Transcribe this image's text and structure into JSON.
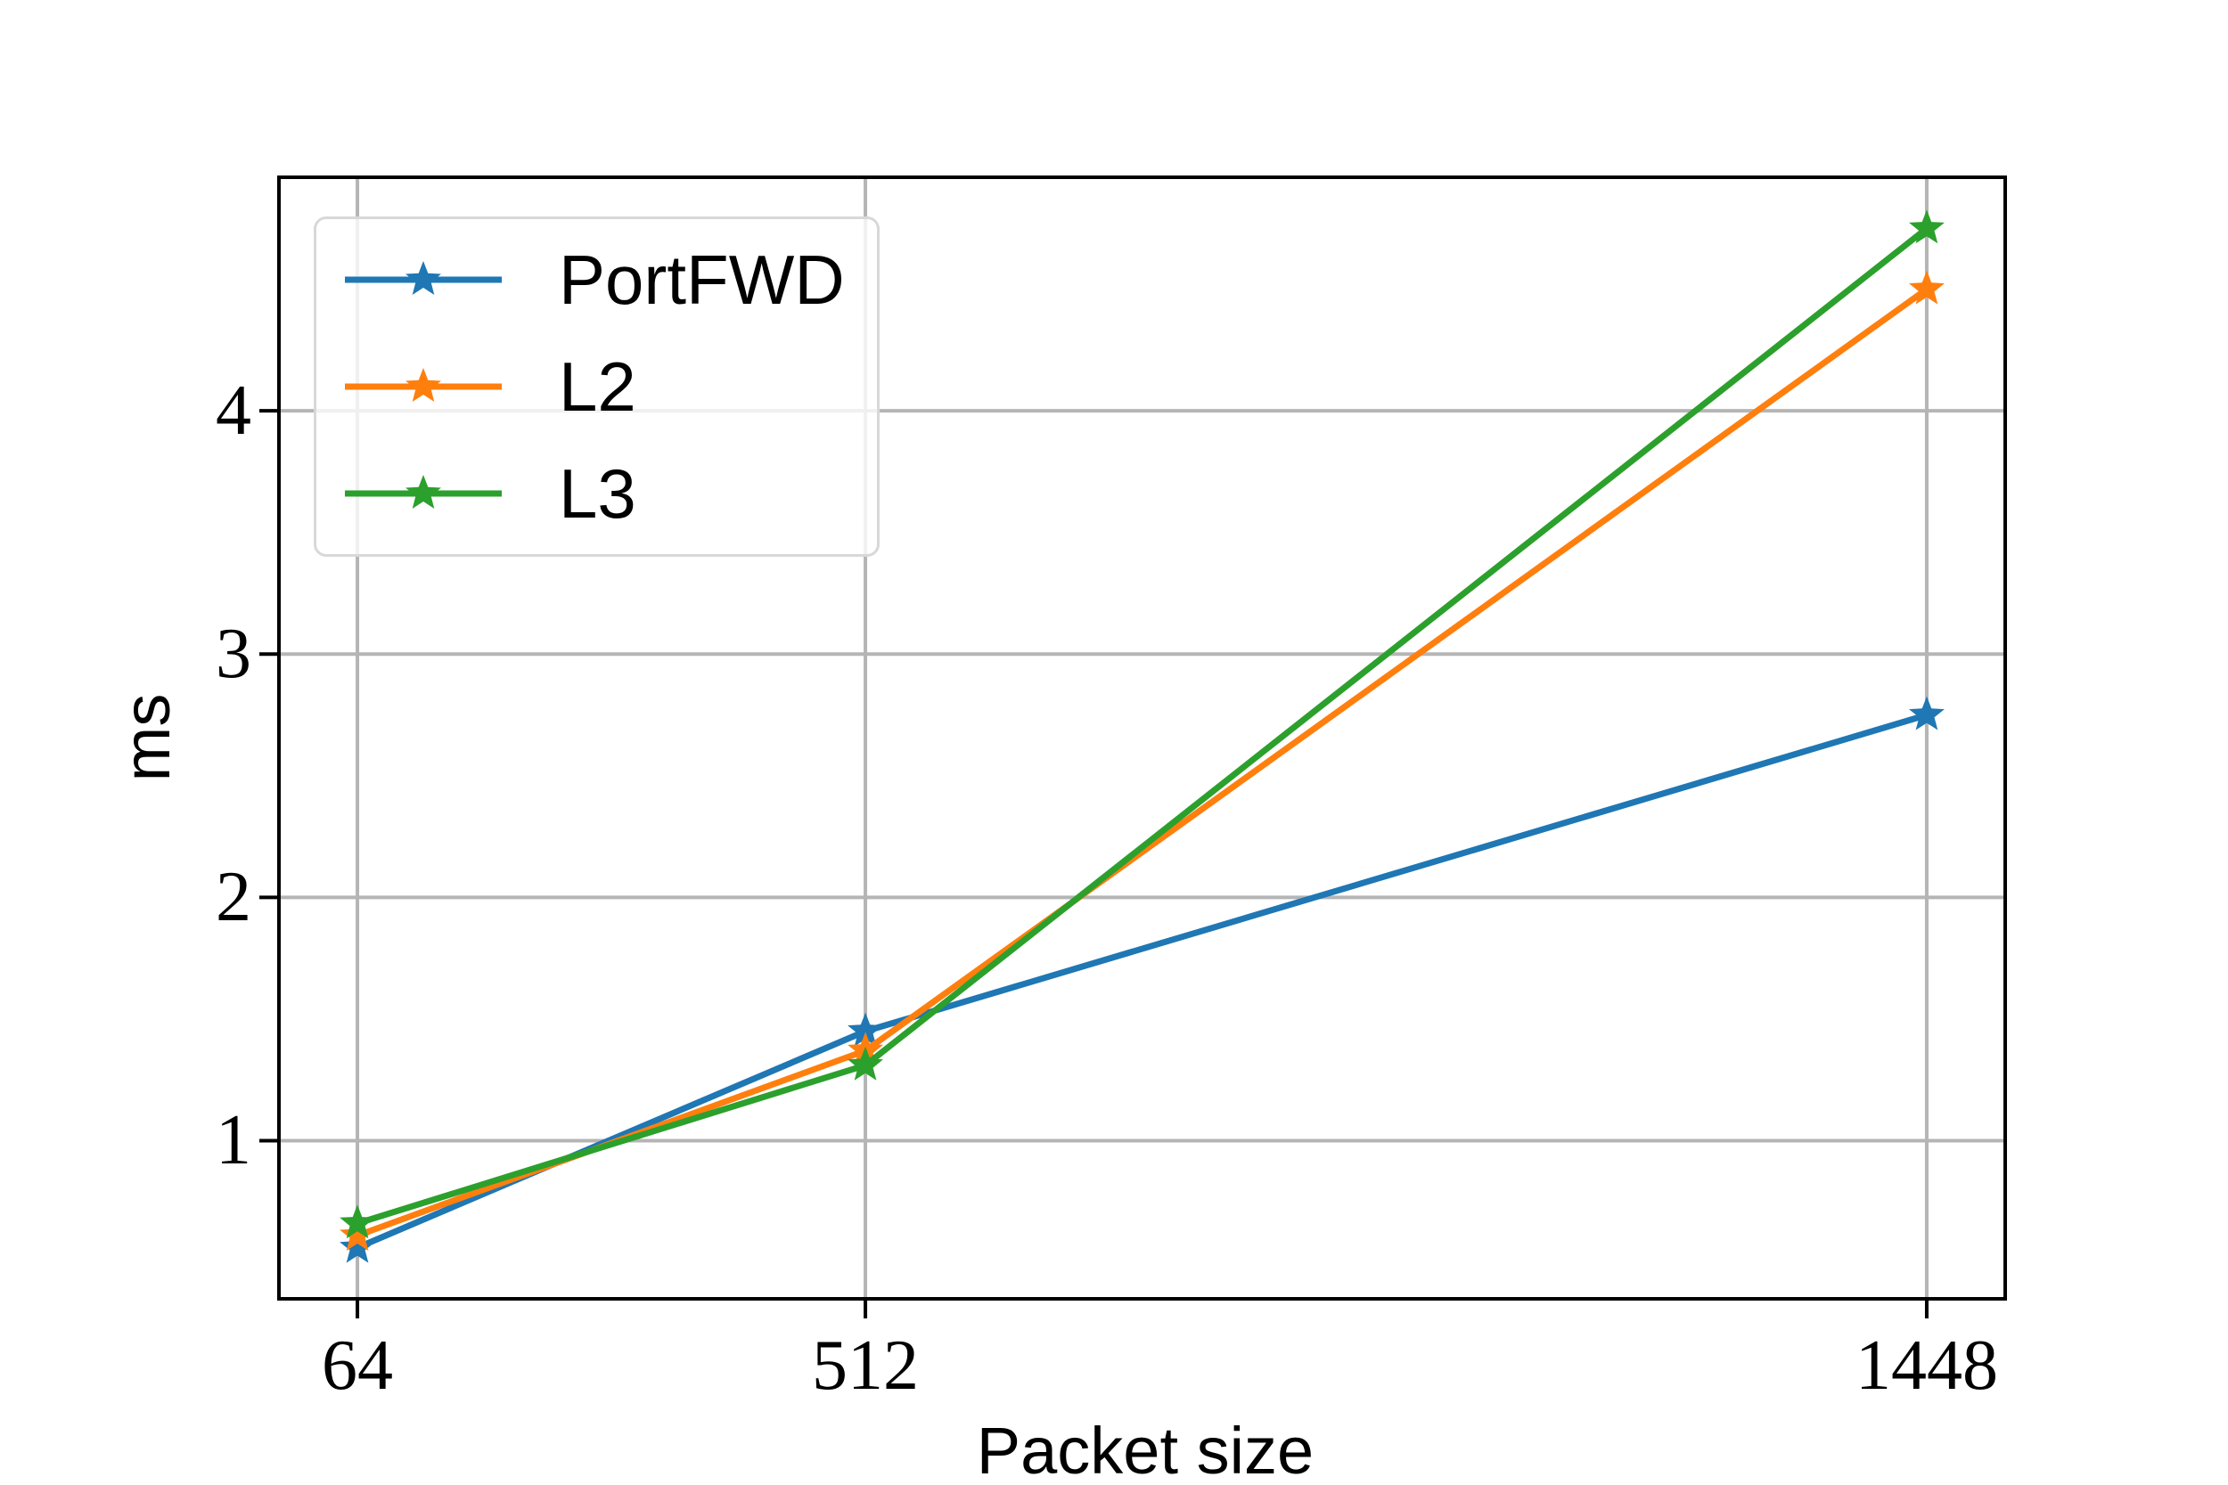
{
  "chart_data": {
    "type": "line",
    "title": "",
    "xlabel": "Packet size",
    "ylabel": "ms",
    "x": [
      64,
      512,
      1448
    ],
    "x_tick_labels": [
      "64",
      "512",
      "1448"
    ],
    "y_ticks": [
      1,
      2,
      3,
      4
    ],
    "y_tick_labels": [
      "1",
      "2",
      "3",
      "4"
    ],
    "xlim": [
      -5.2,
      1517.2
    ],
    "ylim": [
      0.35,
      4.96
    ],
    "grid": true,
    "marker": "star",
    "legend_position": "upper-left",
    "series": [
      {
        "name": "PortFWD",
        "color": "#1f77b4",
        "values": [
          0.56,
          1.45,
          2.75
        ]
      },
      {
        "name": "L2",
        "color": "#ff7f0e",
        "values": [
          0.61,
          1.37,
          4.5
        ]
      },
      {
        "name": "L3",
        "color": "#2ca02c",
        "values": [
          0.66,
          1.31,
          4.75
        ]
      }
    ]
  },
  "colors": {
    "grid": "#b5b5b5",
    "spine": "#000000",
    "tick": "#000000",
    "text": "#000000",
    "legend_border": "#d8d8d8",
    "background": "#ffffff"
  }
}
